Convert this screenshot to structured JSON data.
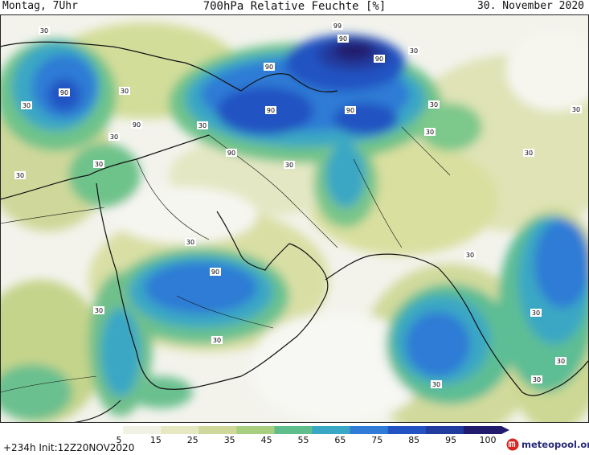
{
  "header": {
    "left": "Montag, 7Uhr",
    "title": "700hPa Relative Feuchte [%]",
    "right": "30. November 2020"
  },
  "footer": {
    "left": "+234h  Init:12Z20NOV2020",
    "logo": "meteopool.org"
  },
  "legend": {
    "ticks": [
      "5",
      "15",
      "25",
      "35",
      "45",
      "55",
      "65",
      "75",
      "85",
      "95",
      "100"
    ],
    "colors": [
      "#ffffff",
      "#f2f2e4",
      "#e6e8c2",
      "#cfd89a",
      "#a7cf7f",
      "#5fbe8b",
      "#3aa7c4",
      "#2f7bd5",
      "#2353c2",
      "#213b9e",
      "#221c6e"
    ]
  },
  "map": {
    "region": "Middle East / Arabian Peninsula",
    "contour_labels": [
      "30",
      "30",
      "90",
      "30",
      "90",
      "30",
      "30",
      "99",
      "90",
      "90",
      "90",
      "30",
      "90",
      "90",
      "30",
      "30",
      "30",
      "30",
      "90",
      "30",
      "90",
      "30",
      "30",
      "30",
      "30",
      "30",
      "30",
      "30",
      "30",
      "30",
      "30"
    ]
  }
}
